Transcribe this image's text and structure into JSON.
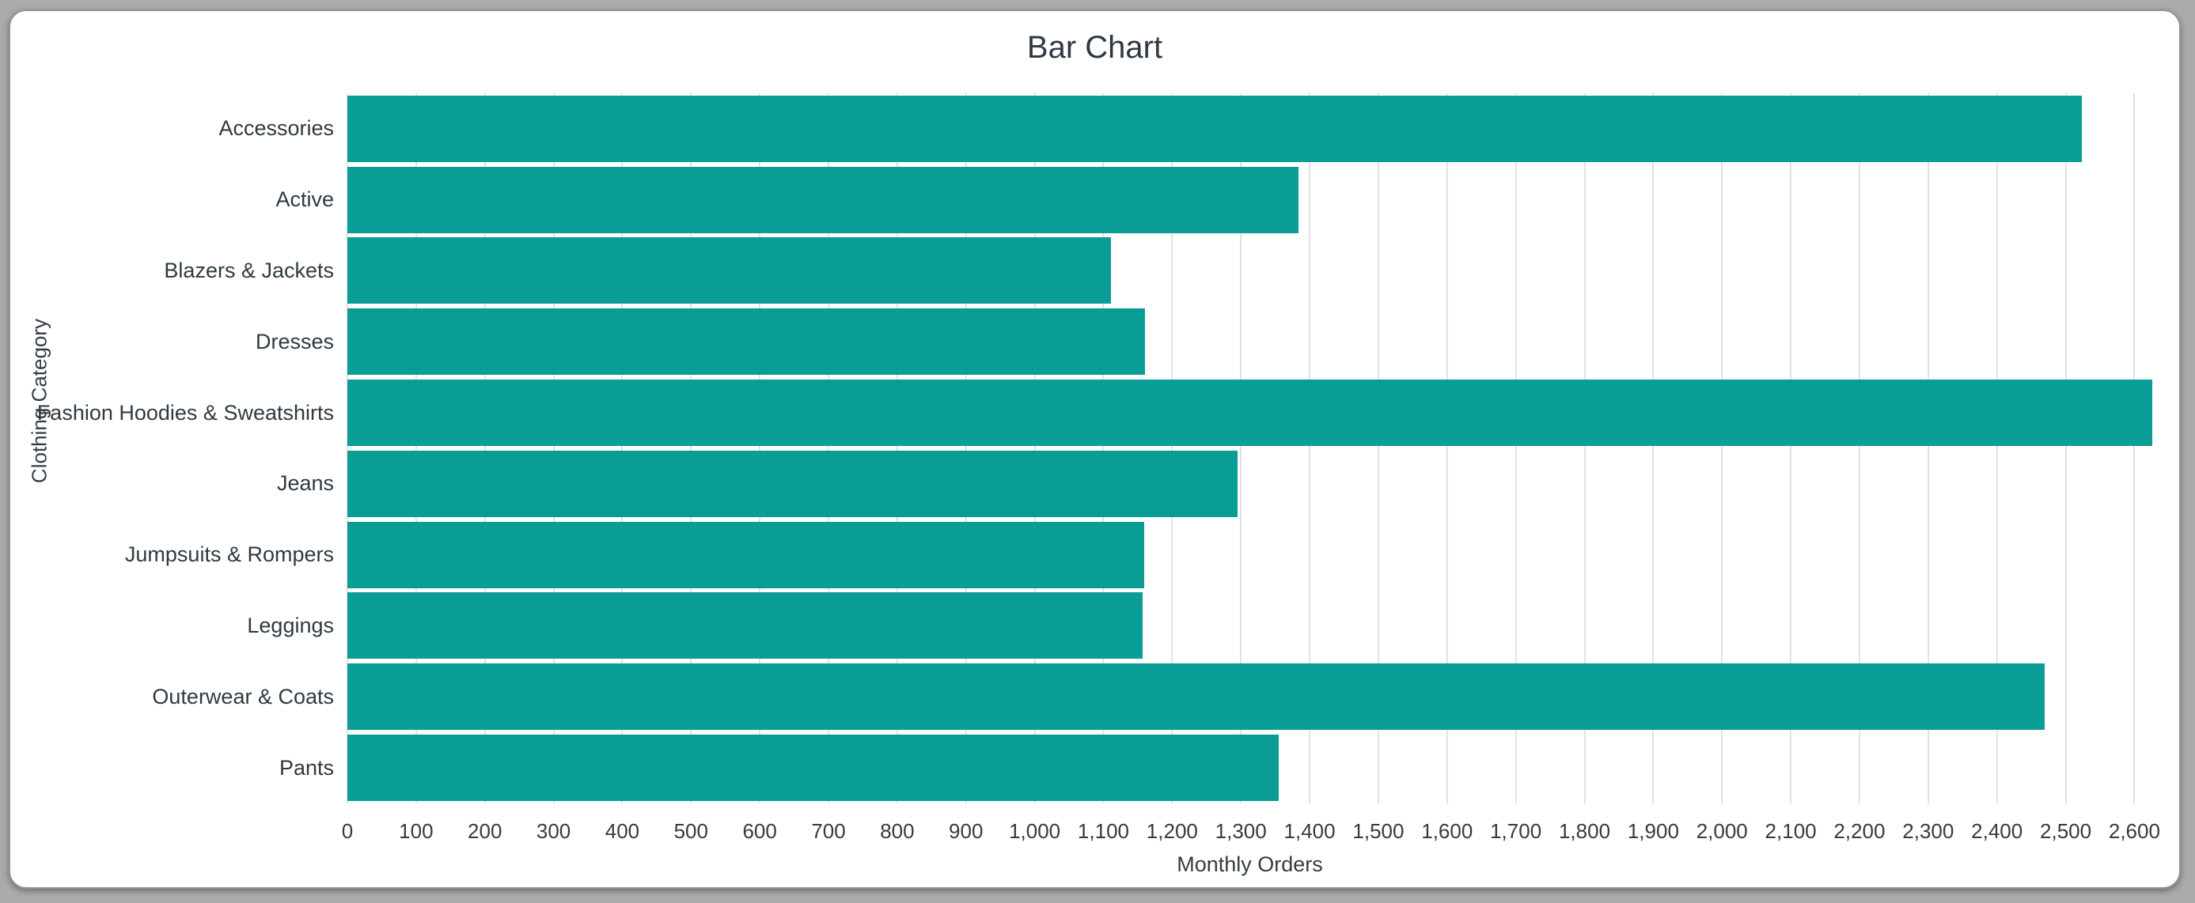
{
  "chart": {
    "title": "Bar Chart",
    "xlabel": "Monthly Orders",
    "ylabel": "Clothing Category"
  },
  "chart_data": {
    "type": "bar",
    "orientation": "horizontal",
    "title": "Bar Chart",
    "xlabel": "Monthly Orders",
    "ylabel": "Clothing Category",
    "categories": [
      "Accessories",
      "Active",
      "Blazers & Jackets",
      "Dresses",
      "Fashion Hoodies & Sweatshirts",
      "Jeans",
      "Jumpsuits & Rompers",
      "Leggings",
      "Outerwear & Coats",
      "Pants"
    ],
    "values": [
      2524,
      1384,
      1111,
      1160,
      2626,
      1295,
      1159,
      1157,
      2469,
      1355
    ],
    "xlim": [
      0,
      2626
    ],
    "x_tick_step": 100,
    "x_tick_labels": [
      "0",
      "100",
      "200",
      "300",
      "400",
      "500",
      "600",
      "700",
      "800",
      "900",
      "1,000",
      "1,100",
      "1,200",
      "1,300",
      "1,400",
      "1,500",
      "1,600",
      "1,700",
      "1,800",
      "1,900",
      "2,000",
      "2,100",
      "2,200",
      "2,300",
      "2,400",
      "2,500",
      "2,600"
    ],
    "grid": true,
    "legend": "none",
    "bar_color": "#099d96",
    "colors": {
      "grid": "#e2e2e2",
      "text": "#333b44",
      "title": "#2f3842",
      "background": "#ffffff",
      "frame": "#ababab"
    }
  }
}
